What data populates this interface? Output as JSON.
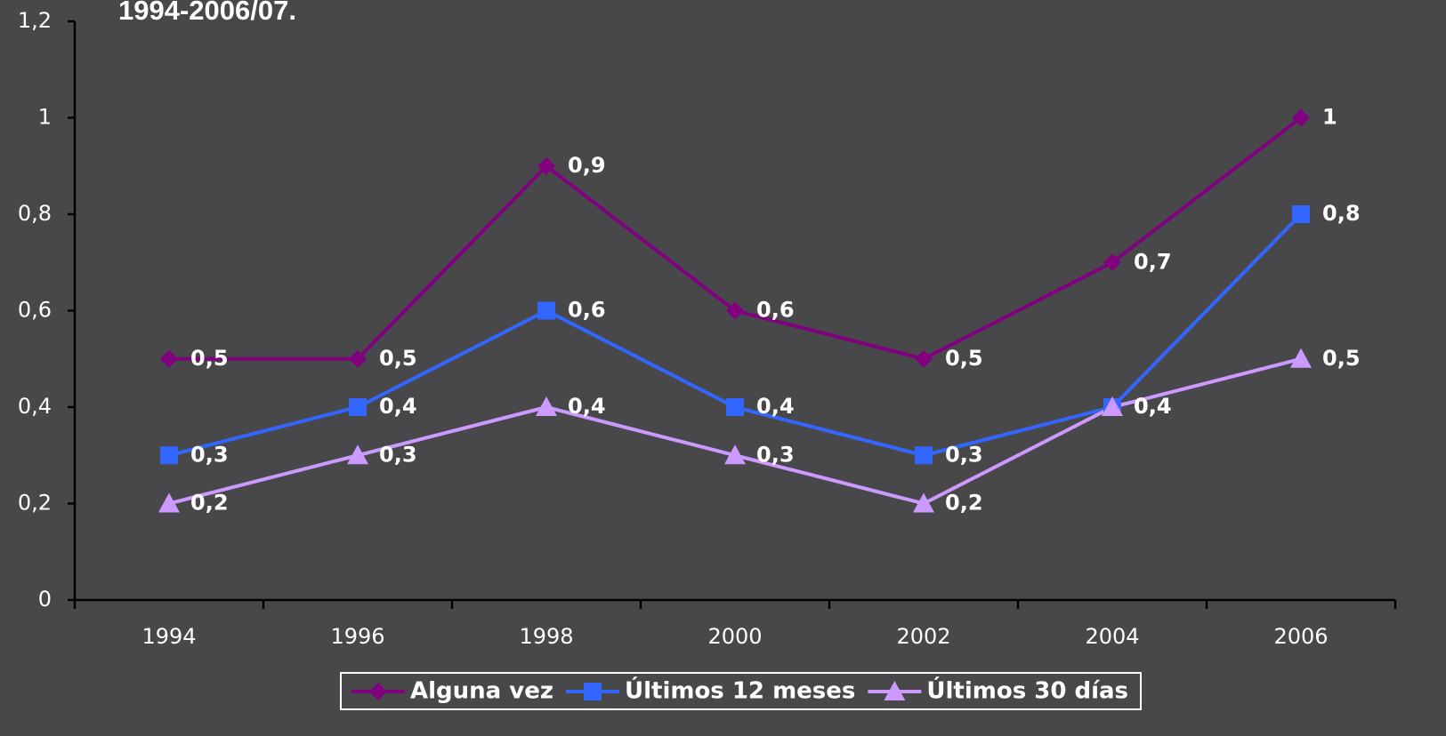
{
  "chart_data": {
    "type": "line",
    "title": "1994-2006/07.",
    "categories": [
      "1994",
      "1996",
      "1998",
      "2000",
      "2002",
      "2004",
      "2006"
    ],
    "series": [
      {
        "name": "Alguna vez",
        "color": "#800080",
        "marker": "diamond",
        "values": [
          0.5,
          0.5,
          0.9,
          0.6,
          0.5,
          0.7,
          1
        ],
        "value_labels": [
          "0,5",
          "0,5",
          "0,9",
          "0,6",
          "0,5",
          "0,7",
          "1"
        ]
      },
      {
        "name": "Últimos 12 meses",
        "color": "#3366ff",
        "marker": "square",
        "values": [
          0.3,
          0.4,
          0.6,
          0.4,
          0.3,
          0.4,
          0.8
        ],
        "value_labels": [
          "0,3",
          "0,4",
          "0,6",
          "0,4",
          "0,3",
          "0,4",
          "0,8"
        ]
      },
      {
        "name": "Últimos 30 días",
        "color": "#cc99ff",
        "marker": "triangle",
        "values": [
          0.2,
          0.3,
          0.4,
          0.3,
          0.2,
          0.4,
          0.5
        ],
        "value_labels": [
          "0,2",
          "0,3",
          "0,4",
          "0,3",
          "0,2",
          "0,4",
          "0,5"
        ]
      }
    ],
    "ylim": [
      0,
      1.2
    ],
    "yticks": [
      0,
      {
        "value": 0.2,
        "label": "0,2"
      },
      {
        "value": 0.4,
        "label": "0,4"
      },
      {
        "value": 0.6,
        "label": "0,6"
      },
      {
        "value": 0.8,
        "label": "0,8"
      },
      1,
      {
        "value": 1.2,
        "label": "1,2"
      }
    ],
    "legend": "bottom"
  }
}
